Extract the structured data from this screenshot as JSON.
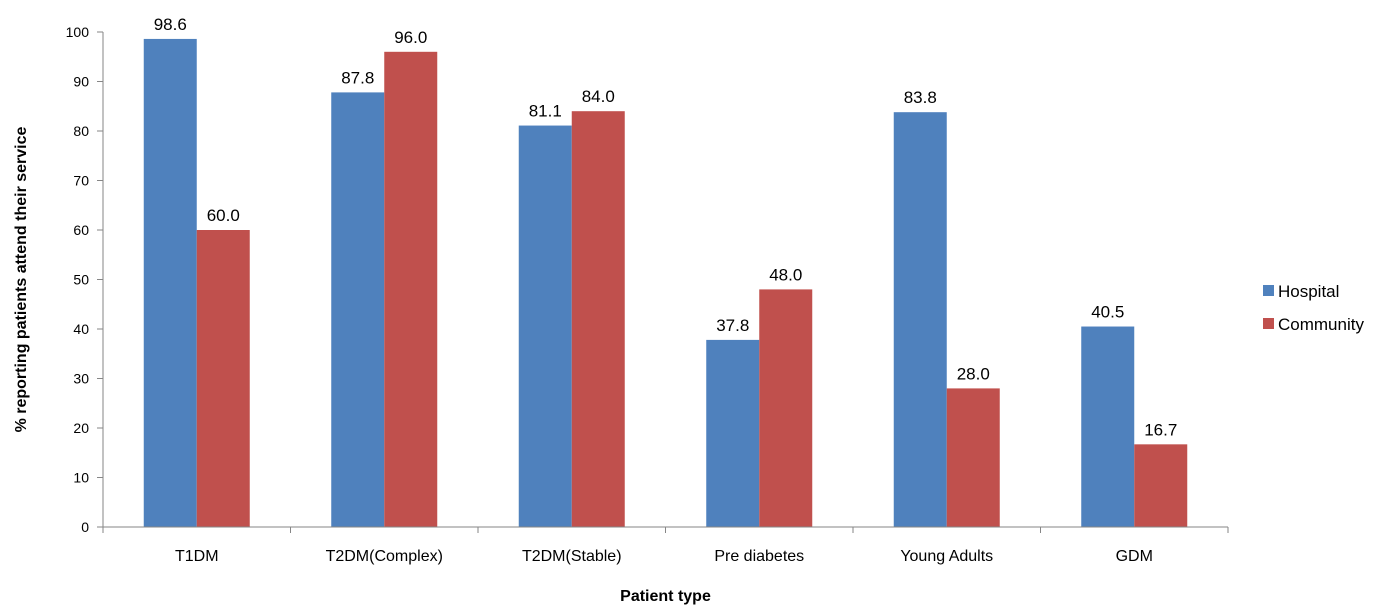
{
  "chart_data": {
    "type": "bar",
    "categories": [
      "T1DM",
      "T2DM(Complex)",
      "T2DM(Stable)",
      "Pre diabetes",
      "Young Adults",
      "GDM"
    ],
    "series": [
      {
        "name": "Hospital",
        "values": [
          98.6,
          87.8,
          81.1,
          37.8,
          83.8,
          40.5
        ],
        "color": "#4f81bd"
      },
      {
        "name": "Community",
        "values": [
          60.0,
          96.0,
          84.0,
          48.0,
          28.0,
          16.7
        ],
        "color": "#c0504d"
      }
    ],
    "title": "",
    "xlabel": "Patient type",
    "ylabel": "% reporting patients attend their service",
    "ylim": [
      0,
      100
    ],
    "yticks": [
      0,
      10,
      20,
      30,
      40,
      50,
      60,
      70,
      80,
      90,
      100
    ],
    "grid": false,
    "legend_position": "right",
    "data_label_format": "1 decimal"
  }
}
